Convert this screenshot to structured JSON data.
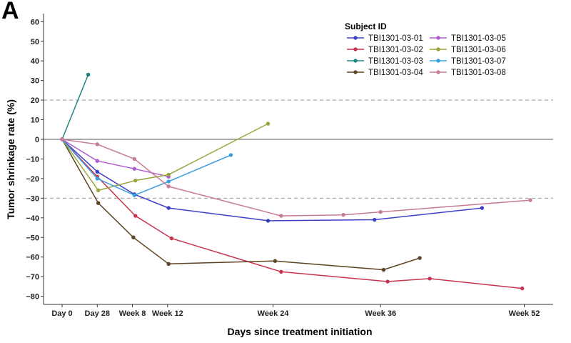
{
  "panel_label": "A",
  "chart_data": {
    "type": "line",
    "xlabel": "Days since treatment initiation",
    "ylabel": "Tumor shrinkage rate (%)",
    "xlim": [
      0,
      466
    ],
    "ylim": [
      -80,
      60
    ],
    "y_ticks": [
      -80,
      -70,
      -60,
      -50,
      -40,
      -30,
      -20,
      -10,
      0,
      10,
      20,
      30,
      40,
      50,
      60
    ],
    "x_ticks": [
      {
        "value": 0,
        "label": "Day 0"
      },
      {
        "value": 35,
        "label": "Day 28"
      },
      {
        "value": 70,
        "label": "Week 8"
      },
      {
        "value": 105,
        "label": "Week 12"
      },
      {
        "value": 210,
        "label": "Week 24"
      },
      {
        "value": 317,
        "label": "Week 36"
      },
      {
        "value": 460,
        "label": "Week 52"
      }
    ],
    "reference_lines": [
      {
        "y": 20,
        "style": "dashed"
      },
      {
        "y": 0,
        "style": "solid"
      },
      {
        "y": -30,
        "style": "dashed"
      }
    ],
    "legend_title": "Subject ID",
    "series": [
      {
        "name": "TBI1301-03-01",
        "color": "#3c40c6",
        "points": [
          [
            0,
            0
          ],
          [
            35,
            -16.5
          ],
          [
            72,
            -28
          ],
          [
            106,
            -35
          ],
          [
            205,
            -41.5
          ],
          [
            311,
            -41
          ],
          [
            418,
            -35
          ]
        ]
      },
      {
        "name": "TBI1301-03-02",
        "color": "#c8334f",
        "points": [
          [
            0,
            0
          ],
          [
            35,
            -19
          ],
          [
            73,
            -39
          ],
          [
            109,
            -50.5
          ],
          [
            218,
            -67.5
          ],
          [
            324,
            -72.5
          ],
          [
            366,
            -71
          ],
          [
            458,
            -76
          ]
        ]
      },
      {
        "name": "TBI1301-03-03",
        "color": "#1f8580",
        "points": [
          [
            0,
            0
          ],
          [
            26,
            33
          ]
        ]
      },
      {
        "name": "TBI1301-03-04",
        "color": "#5c4322",
        "points": [
          [
            0,
            0
          ],
          [
            36,
            -32.5
          ],
          [
            71,
            -50
          ],
          [
            106,
            -63.5
          ],
          [
            212,
            -62
          ],
          [
            320,
            -66.5
          ],
          [
            356,
            -60.5
          ]
        ]
      },
      {
        "name": "TBI1301-03-05",
        "color": "#b05ad0",
        "points": [
          [
            0,
            0
          ],
          [
            35,
            -11
          ],
          [
            72,
            -15
          ],
          [
            106,
            -19
          ]
        ]
      },
      {
        "name": "TBI1301-03-06",
        "color": "#9aa33a",
        "points": [
          [
            0,
            0
          ],
          [
            36,
            -26
          ],
          [
            73,
            -21
          ],
          [
            106,
            -18
          ],
          [
            205,
            8
          ]
        ]
      },
      {
        "name": "TBI1301-03-07",
        "color": "#3a9fe0",
        "points": [
          [
            0,
            0
          ],
          [
            35,
            -20
          ],
          [
            72,
            -28.5
          ],
          [
            106,
            -21.5
          ],
          [
            168,
            -8
          ]
        ]
      },
      {
        "name": "TBI1301-03-08",
        "color": "#c77a9a",
        "points": [
          [
            0,
            0
          ],
          [
            35,
            -2.5
          ],
          [
            72,
            -10
          ],
          [
            106,
            -24
          ],
          [
            218,
            -39
          ],
          [
            280,
            -38.5
          ],
          [
            317,
            -37
          ],
          [
            466,
            -31
          ]
        ]
      }
    ]
  }
}
